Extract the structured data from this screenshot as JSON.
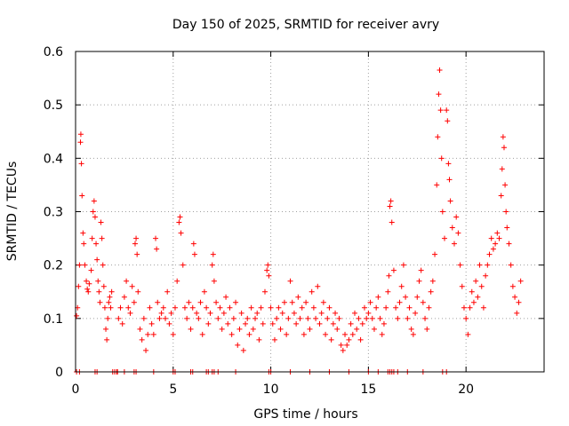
{
  "chart_data": {
    "type": "scatter",
    "title": "Day 150 of 2025, SRMTID for receiver avry",
    "xlabel": "GPS time / hours",
    "ylabel": "SRMTID / TECUs",
    "xlim": [
      0,
      24
    ],
    "ylim": [
      0,
      0.6
    ],
    "grid": true,
    "legend": "none",
    "marker": "plus",
    "color": "#ff0000",
    "xticks": [
      {
        "value": 0,
        "label": "0"
      },
      {
        "value": 5,
        "label": "5"
      },
      {
        "value": 10,
        "label": "10"
      },
      {
        "value": 15,
        "label": "15"
      },
      {
        "value": 20,
        "label": "20"
      }
    ],
    "yticks": [
      {
        "value": 0,
        "label": "0"
      },
      {
        "value": 0.1,
        "label": "0.1"
      },
      {
        "value": 0.2,
        "label": "0.2"
      },
      {
        "value": 0.3,
        "label": "0.3"
      },
      {
        "value": 0.4,
        "label": "0.4"
      },
      {
        "value": 0.5,
        "label": "0.5"
      },
      {
        "value": 0.6,
        "label": "0.6"
      }
    ],
    "series": [
      {
        "name": "SRMTID",
        "points": [
          [
            0.05,
            0.105
          ],
          [
            0.1,
            0.12
          ],
          [
            0.15,
            0.16
          ],
          [
            0.2,
            0.2
          ],
          [
            0.25,
            0.43
          ],
          [
            0.27,
            0.445
          ],
          [
            0.3,
            0.39
          ],
          [
            0.33,
            0.33
          ],
          [
            0.38,
            0.26
          ],
          [
            0.42,
            0.24
          ],
          [
            0.48,
            0.2
          ],
          [
            0.55,
            0.17
          ],
          [
            0.6,
            0.155
          ],
          [
            0.65,
            0.15
          ],
          [
            0.7,
            0.165
          ],
          [
            0.8,
            0.19
          ],
          [
            0.85,
            0.25
          ],
          [
            0.9,
            0.3
          ],
          [
            0.95,
            0.32
          ],
          [
            1.0,
            0.29
          ],
          [
            1.05,
            0.24
          ],
          [
            1.1,
            0.21
          ],
          [
            1.15,
            0.17
          ],
          [
            1.2,
            0.15
          ],
          [
            1.25,
            0.13
          ],
          [
            1.3,
            0.28
          ],
          [
            1.35,
            0.25
          ],
          [
            1.4,
            0.2
          ],
          [
            1.45,
            0.16
          ],
          [
            1.5,
            0.12
          ],
          [
            1.55,
            0.08
          ],
          [
            1.6,
            0.06
          ],
          [
            1.65,
            0.1
          ],
          [
            1.7,
            0.13
          ],
          [
            1.75,
            0.14
          ],
          [
            1.8,
            0.12
          ],
          [
            1.85,
            0.15
          ],
          [
            2.2,
            0.1
          ],
          [
            2.3,
            0.12
          ],
          [
            2.4,
            0.09
          ],
          [
            2.5,
            0.14
          ],
          [
            2.6,
            0.17
          ],
          [
            2.7,
            0.12
          ],
          [
            2.8,
            0.11
          ],
          [
            2.9,
            0.16
          ],
          [
            3.0,
            0.13
          ],
          [
            3.05,
            0.24
          ],
          [
            3.1,
            0.25
          ],
          [
            3.15,
            0.22
          ],
          [
            3.2,
            0.15
          ],
          [
            3.3,
            0.08
          ],
          [
            3.4,
            0.06
          ],
          [
            3.5,
            0.1
          ],
          [
            3.6,
            0.04
          ],
          [
            3.7,
            0.07
          ],
          [
            3.8,
            0.12
          ],
          [
            3.9,
            0.09
          ],
          [
            4.0,
            0.07
          ],
          [
            4.1,
            0.25
          ],
          [
            4.15,
            0.23
          ],
          [
            4.2,
            0.13
          ],
          [
            4.3,
            0.1
          ],
          [
            4.4,
            0.11
          ],
          [
            4.5,
            0.12
          ],
          [
            4.6,
            0.1
          ],
          [
            4.7,
            0.15
          ],
          [
            4.8,
            0.09
          ],
          [
            4.9,
            0.11
          ],
          [
            5.0,
            0.07
          ],
          [
            5.1,
            0.12
          ],
          [
            5.2,
            0.17
          ],
          [
            5.3,
            0.28
          ],
          [
            5.35,
            0.29
          ],
          [
            5.4,
            0.26
          ],
          [
            5.5,
            0.2
          ],
          [
            5.6,
            0.12
          ],
          [
            5.7,
            0.1
          ],
          [
            5.8,
            0.13
          ],
          [
            5.9,
            0.08
          ],
          [
            6.0,
            0.12
          ],
          [
            6.05,
            0.24
          ],
          [
            6.1,
            0.22
          ],
          [
            6.2,
            0.11
          ],
          [
            6.3,
            0.1
          ],
          [
            6.4,
            0.13
          ],
          [
            6.5,
            0.07
          ],
          [
            6.6,
            0.15
          ],
          [
            6.7,
            0.12
          ],
          [
            6.8,
            0.09
          ],
          [
            6.9,
            0.11
          ],
          [
            7.0,
            0.2
          ],
          [
            7.05,
            0.22
          ],
          [
            7.1,
            0.17
          ],
          [
            7.2,
            0.13
          ],
          [
            7.3,
            0.1
          ],
          [
            7.4,
            0.12
          ],
          [
            7.5,
            0.08
          ],
          [
            7.6,
            0.11
          ],
          [
            7.7,
            0.14
          ],
          [
            7.8,
            0.09
          ],
          [
            7.9,
            0.12
          ],
          [
            8.0,
            0.07
          ],
          [
            8.1,
            0.1
          ],
          [
            8.2,
            0.13
          ],
          [
            8.3,
            0.05
          ],
          [
            8.4,
            0.08
          ],
          [
            8.5,
            0.11
          ],
          [
            8.6,
            0.04
          ],
          [
            8.7,
            0.09
          ],
          [
            8.8,
            0.1
          ],
          [
            8.9,
            0.07
          ],
          [
            9.0,
            0.12
          ],
          [
            9.1,
            0.08
          ],
          [
            9.2,
            0.1
          ],
          [
            9.3,
            0.11
          ],
          [
            9.4,
            0.06
          ],
          [
            9.5,
            0.12
          ],
          [
            9.6,
            0.09
          ],
          [
            9.7,
            0.15
          ],
          [
            9.8,
            0.19
          ],
          [
            9.85,
            0.2
          ],
          [
            9.9,
            0.18
          ],
          [
            10.0,
            0.12
          ],
          [
            10.1,
            0.09
          ],
          [
            10.2,
            0.06
          ],
          [
            10.3,
            0.1
          ],
          [
            10.4,
            0.12
          ],
          [
            10.5,
            0.08
          ],
          [
            10.6,
            0.11
          ],
          [
            10.7,
            0.13
          ],
          [
            10.8,
            0.07
          ],
          [
            10.9,
            0.1
          ],
          [
            11.0,
            0.17
          ],
          [
            11.1,
            0.13
          ],
          [
            11.2,
            0.11
          ],
          [
            11.3,
            0.09
          ],
          [
            11.4,
            0.14
          ],
          [
            11.5,
            0.1
          ],
          [
            11.6,
            0.12
          ],
          [
            11.7,
            0.07
          ],
          [
            11.8,
            0.13
          ],
          [
            11.9,
            0.1
          ],
          [
            12.0,
            0.08
          ],
          [
            12.1,
            0.15
          ],
          [
            12.2,
            0.12
          ],
          [
            12.3,
            0.1
          ],
          [
            12.4,
            0.16
          ],
          [
            12.5,
            0.09
          ],
          [
            12.6,
            0.11
          ],
          [
            12.7,
            0.13
          ],
          [
            12.8,
            0.07
          ],
          [
            12.9,
            0.1
          ],
          [
            13.0,
            0.12
          ],
          [
            13.1,
            0.06
          ],
          [
            13.2,
            0.09
          ],
          [
            13.3,
            0.11
          ],
          [
            13.4,
            0.08
          ],
          [
            13.5,
            0.1
          ],
          [
            13.6,
            0.05
          ],
          [
            13.7,
            0.04
          ],
          [
            13.8,
            0.07
          ],
          [
            13.9,
            0.05
          ],
          [
            14.0,
            0.06
          ],
          [
            14.1,
            0.09
          ],
          [
            14.2,
            0.07
          ],
          [
            14.3,
            0.11
          ],
          [
            14.4,
            0.08
          ],
          [
            14.5,
            0.1
          ],
          [
            14.6,
            0.06
          ],
          [
            14.7,
            0.09
          ],
          [
            14.8,
            0.12
          ],
          [
            14.9,
            0.1
          ],
          [
            15.0,
            0.11
          ],
          [
            15.1,
            0.13
          ],
          [
            15.2,
            0.1
          ],
          [
            15.3,
            0.08
          ],
          [
            15.4,
            0.12
          ],
          [
            15.5,
            0.14
          ],
          [
            15.6,
            0.1
          ],
          [
            15.7,
            0.07
          ],
          [
            15.8,
            0.09
          ],
          [
            15.9,
            0.12
          ],
          [
            16.0,
            0.15
          ],
          [
            16.05,
            0.18
          ],
          [
            16.1,
            0.31
          ],
          [
            16.15,
            0.32
          ],
          [
            16.2,
            0.28
          ],
          [
            16.3,
            0.19
          ],
          [
            16.4,
            0.12
          ],
          [
            16.5,
            0.1
          ],
          [
            16.6,
            0.13
          ],
          [
            16.7,
            0.16
          ],
          [
            16.8,
            0.2
          ],
          [
            16.9,
            0.14
          ],
          [
            17.0,
            0.1
          ],
          [
            17.1,
            0.12
          ],
          [
            17.2,
            0.08
          ],
          [
            17.3,
            0.07
          ],
          [
            17.4,
            0.11
          ],
          [
            17.5,
            0.14
          ],
          [
            17.6,
            0.17
          ],
          [
            17.7,
            0.19
          ],
          [
            17.8,
            0.13
          ],
          [
            17.9,
            0.1
          ],
          [
            18.0,
            0.08
          ],
          [
            18.1,
            0.12
          ],
          [
            18.2,
            0.15
          ],
          [
            18.3,
            0.17
          ],
          [
            18.4,
            0.22
          ],
          [
            18.5,
            0.35
          ],
          [
            18.55,
            0.44
          ],
          [
            18.6,
            0.52
          ],
          [
            18.65,
            0.565
          ],
          [
            18.7,
            0.49
          ],
          [
            18.75,
            0.4
          ],
          [
            18.8,
            0.3
          ],
          [
            18.9,
            0.25
          ],
          [
            19.0,
            0.49
          ],
          [
            19.05,
            0.47
          ],
          [
            19.1,
            0.39
          ],
          [
            19.15,
            0.36
          ],
          [
            19.2,
            0.32
          ],
          [
            19.3,
            0.27
          ],
          [
            19.4,
            0.24
          ],
          [
            19.5,
            0.29
          ],
          [
            19.6,
            0.26
          ],
          [
            19.7,
            0.2
          ],
          [
            19.8,
            0.16
          ],
          [
            19.9,
            0.12
          ],
          [
            20.0,
            0.1
          ],
          [
            20.1,
            0.07
          ],
          [
            20.2,
            0.12
          ],
          [
            20.3,
            0.15
          ],
          [
            20.4,
            0.13
          ],
          [
            20.5,
            0.17
          ],
          [
            20.6,
            0.14
          ],
          [
            20.7,
            0.2
          ],
          [
            20.8,
            0.16
          ],
          [
            20.9,
            0.12
          ],
          [
            21.0,
            0.18
          ],
          [
            21.1,
            0.2
          ],
          [
            21.2,
            0.22
          ],
          [
            21.3,
            0.25
          ],
          [
            21.4,
            0.23
          ],
          [
            21.5,
            0.24
          ],
          [
            21.6,
            0.26
          ],
          [
            21.7,
            0.25
          ],
          [
            21.8,
            0.33
          ],
          [
            21.85,
            0.38
          ],
          [
            21.9,
            0.44
          ],
          [
            21.95,
            0.42
          ],
          [
            22.0,
            0.35
          ],
          [
            22.05,
            0.3
          ],
          [
            22.1,
            0.27
          ],
          [
            22.2,
            0.24
          ],
          [
            22.3,
            0.2
          ],
          [
            22.4,
            0.16
          ],
          [
            22.5,
            0.14
          ],
          [
            22.6,
            0.11
          ],
          [
            22.7,
            0.13
          ],
          [
            22.8,
            0.17
          ]
        ],
        "zero_points": [
          0.05,
          0.2,
          1.0,
          1.1,
          1.9,
          2.0,
          2.1,
          2.15,
          2.5,
          3.0,
          3.1,
          4.0,
          5.0,
          5.1,
          5.9,
          6.0,
          6.7,
          6.8,
          7.0,
          7.1,
          7.3,
          8.2,
          9.9,
          10.0,
          11.0,
          12.0,
          13.0,
          14.0,
          15.0,
          15.5,
          16.0,
          16.1,
          16.2,
          16.3,
          16.5,
          17.0,
          17.8,
          18.8,
          19.0
        ]
      }
    ]
  }
}
